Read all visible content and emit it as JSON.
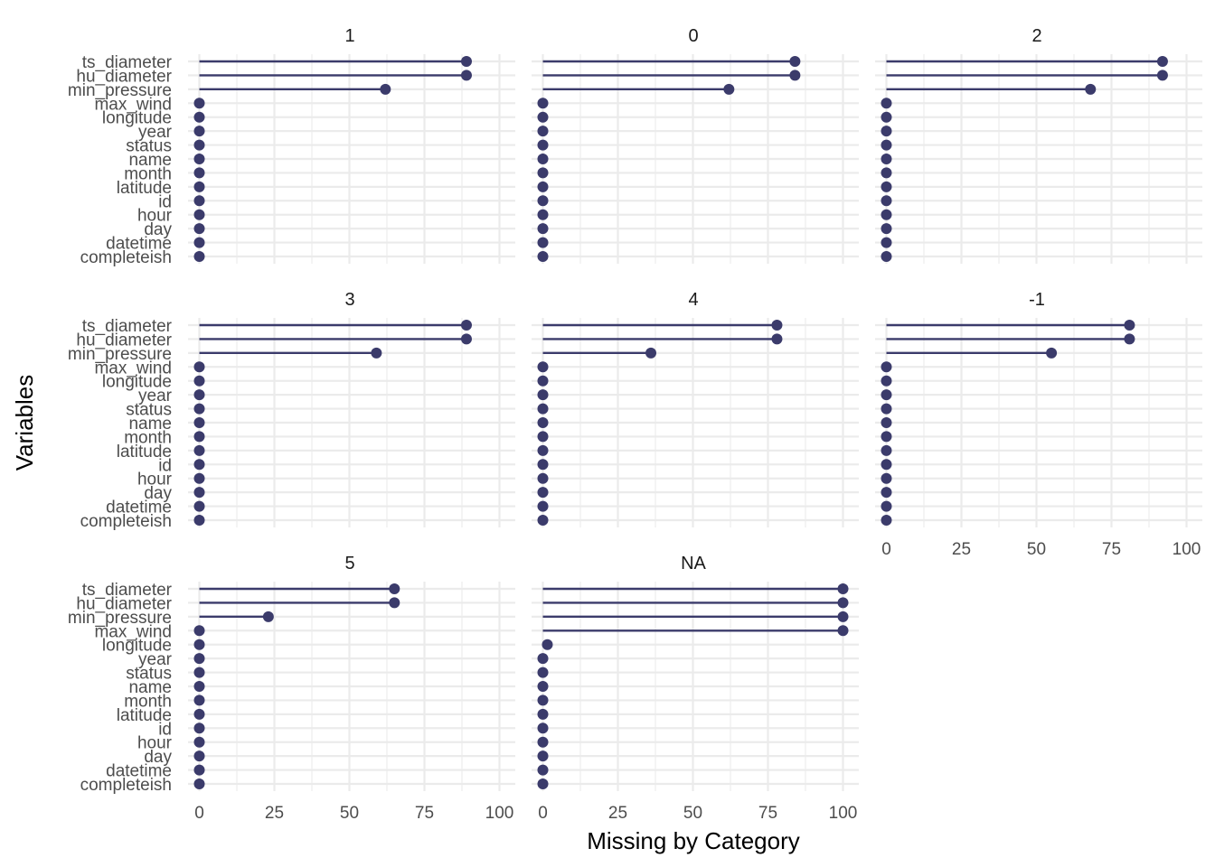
{
  "colors": {
    "lollipop": "#3b3b6b",
    "grid": "#ebebeb",
    "background": "#ffffff"
  },
  "chart_data": {
    "type": "lollipop",
    "xlabel": "Missing by Category",
    "ylabel": "Variables",
    "xlim": [
      0,
      100
    ],
    "xticks": [
      "0",
      "25",
      "50",
      "75",
      "100"
    ],
    "grid": true,
    "variables": [
      "ts_diameter",
      "hu_diameter",
      "min_pressure",
      "max_wind",
      "longitude",
      "year",
      "status",
      "name",
      "month",
      "latitude",
      "id",
      "hour",
      "day",
      "datetime",
      "completeish"
    ],
    "facets": [
      {
        "label": "1",
        "values": [
          89,
          89,
          62,
          0,
          0,
          0,
          0,
          0,
          0,
          0,
          0,
          0,
          0,
          0,
          0
        ]
      },
      {
        "label": "0",
        "values": [
          84,
          84,
          62,
          0,
          0,
          0,
          0,
          0,
          0,
          0,
          0,
          0,
          0,
          0,
          0
        ]
      },
      {
        "label": "2",
        "values": [
          92,
          92,
          68,
          0,
          0,
          0,
          0,
          0,
          0,
          0,
          0,
          0,
          0,
          0,
          0
        ]
      },
      {
        "label": "3",
        "values": [
          89,
          89,
          59,
          0,
          0,
          0,
          0,
          0,
          0,
          0,
          0,
          0,
          0,
          0,
          0
        ]
      },
      {
        "label": "4",
        "values": [
          78,
          78,
          36,
          0,
          0,
          0,
          0,
          0,
          0,
          0,
          0,
          0,
          0,
          0,
          0
        ]
      },
      {
        "label": "-1",
        "values": [
          81,
          81,
          55,
          0,
          0,
          0,
          0,
          0,
          0,
          0,
          0,
          0,
          0,
          0,
          0
        ]
      },
      {
        "label": "5",
        "values": [
          65,
          65,
          23,
          0,
          0,
          0,
          0,
          0,
          0,
          0,
          0,
          0,
          0,
          0,
          0
        ]
      },
      {
        "label": "NA",
        "values": [
          100,
          100,
          100,
          100,
          1.5,
          0,
          0,
          0,
          0,
          0,
          0,
          0,
          0,
          0,
          0
        ]
      }
    ]
  }
}
